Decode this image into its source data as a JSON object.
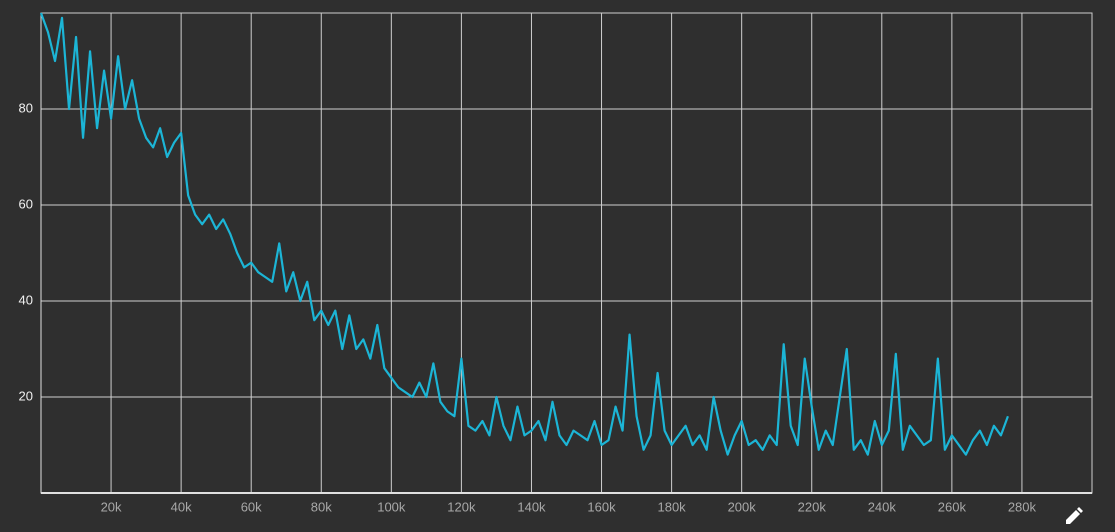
{
  "chart_data": {
    "type": "line",
    "xlim": [
      0,
      300000
    ],
    "ylim": [
      0,
      100
    ],
    "xticks": [
      {
        "value": 20000,
        "label": "20k"
      },
      {
        "value": 40000,
        "label": "40k"
      },
      {
        "value": 60000,
        "label": "60k"
      },
      {
        "value": 80000,
        "label": "80k"
      },
      {
        "value": 100000,
        "label": "100k"
      },
      {
        "value": 120000,
        "label": "120k"
      },
      {
        "value": 140000,
        "label": "140k"
      },
      {
        "value": 160000,
        "label": "160k"
      },
      {
        "value": 180000,
        "label": "180k"
      },
      {
        "value": 200000,
        "label": "200k"
      },
      {
        "value": 220000,
        "label": "220k"
      },
      {
        "value": 240000,
        "label": "240k"
      },
      {
        "value": 260000,
        "label": "260k"
      },
      {
        "value": 280000,
        "label": "280k"
      }
    ],
    "yticks": [
      20,
      40,
      60,
      80
    ],
    "grid": true,
    "x": [
      0,
      2000,
      4000,
      6000,
      8000,
      10000,
      12000,
      14000,
      16000,
      18000,
      20000,
      22000,
      24000,
      26000,
      28000,
      30000,
      32000,
      34000,
      36000,
      38000,
      40000,
      42000,
      44000,
      46000,
      48000,
      50000,
      52000,
      54000,
      56000,
      58000,
      60000,
      62000,
      64000,
      66000,
      68000,
      70000,
      72000,
      74000,
      76000,
      78000,
      80000,
      82000,
      84000,
      86000,
      88000,
      90000,
      92000,
      94000,
      96000,
      98000,
      100000,
      102000,
      104000,
      106000,
      108000,
      110000,
      112000,
      114000,
      116000,
      118000,
      120000,
      122000,
      124000,
      126000,
      128000,
      130000,
      132000,
      134000,
      136000,
      138000,
      140000,
      142000,
      144000,
      146000,
      148000,
      150000,
      152000,
      154000,
      156000,
      158000,
      160000,
      162000,
      164000,
      166000,
      168000,
      170000,
      172000,
      174000,
      176000,
      178000,
      180000,
      182000,
      184000,
      186000,
      188000,
      190000,
      192000,
      194000,
      196000,
      198000,
      200000,
      202000,
      204000,
      206000,
      208000,
      210000,
      212000,
      214000,
      216000,
      218000,
      220000,
      222000,
      224000,
      226000,
      228000,
      230000,
      232000,
      234000,
      236000,
      238000,
      240000,
      242000,
      244000,
      246000,
      248000,
      250000,
      252000,
      254000,
      256000,
      258000,
      260000,
      262000,
      264000,
      266000,
      268000,
      270000,
      272000,
      274000,
      276000
    ],
    "series": [
      {
        "color": "#1cb5d6",
        "values": [
          100,
          96,
          90,
          99,
          80,
          95,
          74,
          92,
          76,
          88,
          78,
          91,
          80,
          86,
          78,
          74,
          72,
          76,
          70,
          73,
          75,
          62,
          58,
          56,
          58,
          55,
          57,
          54,
          50,
          47,
          48,
          46,
          45,
          44,
          52,
          42,
          46,
          40,
          44,
          36,
          38,
          35,
          38,
          30,
          37,
          30,
          32,
          28,
          35,
          26,
          24,
          22,
          21,
          20,
          23,
          20,
          27,
          19,
          17,
          16,
          28,
          14,
          13,
          15,
          12,
          20,
          14,
          11,
          18,
          12,
          13,
          15,
          11,
          19,
          12,
          10,
          13,
          12,
          11,
          15,
          10,
          11,
          18,
          13,
          33,
          16,
          9,
          12,
          25,
          13,
          10,
          12,
          14,
          10,
          12,
          9,
          20,
          13,
          8,
          12,
          15,
          10,
          11,
          9,
          12,
          10,
          31,
          14,
          10,
          28,
          18,
          9,
          13,
          10,
          20,
          30,
          9,
          11,
          8,
          15,
          10,
          13,
          29,
          9,
          14,
          12,
          10,
          11,
          28,
          9,
          12,
          10,
          8,
          11,
          13,
          10,
          14,
          12,
          16
        ]
      }
    ]
  }
}
